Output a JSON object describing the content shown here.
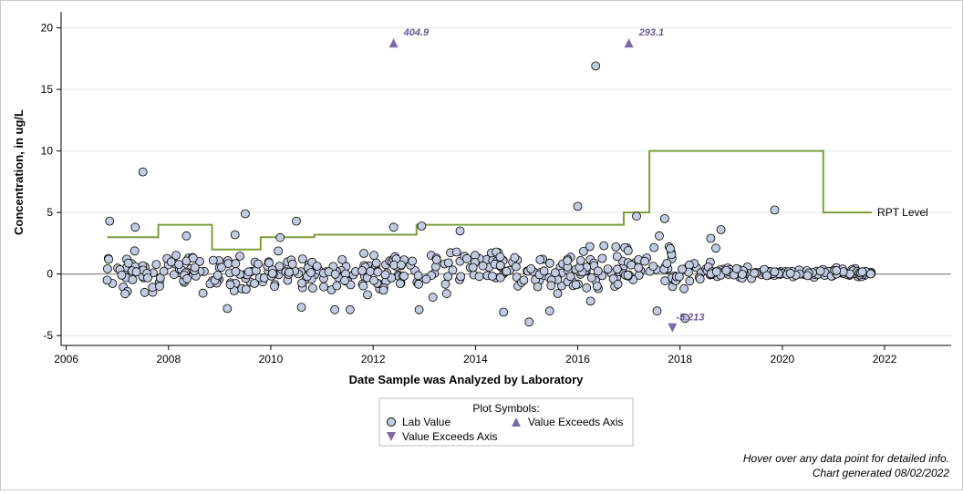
{
  "chart_data": {
    "type": "scatter",
    "xlabel": "Date Sample was Analyzed by Laboratory",
    "ylabel": "Concentration, in ug/L",
    "xlim": [
      2005.9,
      2023.3
    ],
    "ylim": [
      -5.8,
      21.3
    ],
    "x_ticks": [
      2006,
      2008,
      2010,
      2012,
      2014,
      2016,
      2018,
      2020,
      2022
    ],
    "y_ticks": [
      -5,
      0,
      5,
      10,
      15,
      20
    ],
    "grid": "horizontal",
    "reference_line_y": 0,
    "rpt_level": {
      "name": "RPT Level",
      "steps": [
        [
          2006.8,
          3
        ],
        [
          2007.8,
          3
        ],
        [
          2007.8,
          4
        ],
        [
          2008.85,
          4
        ],
        [
          2008.85,
          2
        ],
        [
          2009.8,
          2
        ],
        [
          2009.8,
          3
        ],
        [
          2010.85,
          3
        ],
        [
          2010.85,
          3.2
        ],
        [
          2012.85,
          3.2
        ],
        [
          2012.85,
          4
        ],
        [
          2016.9,
          4
        ],
        [
          2016.9,
          5
        ],
        [
          2017.4,
          5
        ],
        [
          2017.4,
          10
        ],
        [
          2020.8,
          10
        ],
        [
          2020.8,
          5
        ],
        [
          2021.75,
          5
        ]
      ]
    },
    "outliers": [
      {
        "x": 2007.5,
        "y": 8.3
      },
      {
        "x": 2009.5,
        "y": 4.9
      },
      {
        "x": 2010.5,
        "y": 4.3
      },
      {
        "x": 2006.85,
        "y": 4.3
      },
      {
        "x": 2007.35,
        "y": 3.8
      },
      {
        "x": 2012.4,
        "y": 3.8
      },
      {
        "x": 2012.95,
        "y": 3.9
      },
      {
        "x": 2013.7,
        "y": 3.5
      },
      {
        "x": 2016.0,
        "y": 5.5
      },
      {
        "x": 2016.35,
        "y": 16.9
      },
      {
        "x": 2017.7,
        "y": 4.5
      },
      {
        "x": 2017.15,
        "y": 4.7
      },
      {
        "x": 2018.8,
        "y": 3.6
      },
      {
        "x": 2019.85,
        "y": 5.2
      },
      {
        "x": 2009.3,
        "y": 3.2
      },
      {
        "x": 2008.35,
        "y": 3.1
      },
      {
        "x": 2018.6,
        "y": 2.9
      },
      {
        "x": 2018.7,
        "y": 2.1
      },
      {
        "x": 2007.15,
        "y": -1.6
      },
      {
        "x": 2009.15,
        "y": -2.8
      },
      {
        "x": 2010.6,
        "y": -2.7
      },
      {
        "x": 2011.25,
        "y": -2.9
      },
      {
        "x": 2011.55,
        "y": -2.9
      },
      {
        "x": 2012.9,
        "y": -2.9
      },
      {
        "x": 2014.55,
        "y": -3.1
      },
      {
        "x": 2015.05,
        "y": -3.9
      },
      {
        "x": 2015.45,
        "y": -3.0
      },
      {
        "x": 2017.55,
        "y": -3.0
      },
      {
        "x": 2018.1,
        "y": -3.6
      },
      {
        "x": 2016.25,
        "y": -2.2
      }
    ],
    "exceeds_above": [
      {
        "x": 2012.4,
        "label": "404.9"
      },
      {
        "x": 2017.0,
        "label": "293.1"
      }
    ],
    "exceeds_below": [
      {
        "x": 2017.85,
        "label": "-5.213"
      }
    ],
    "legend": {
      "title": "Plot Symbols:",
      "lab_value": "Lab Value",
      "exceeds_up": "Value Exceeds Axis",
      "exceeds_down": "Value Exceeds Axis"
    },
    "colors": {
      "marker_fill": "#c3cbe0",
      "marker_stroke": "#000000",
      "triangle": "#7b6aa8",
      "rpt_line": "#7f9e3c",
      "grid": "#e4e4e4",
      "zero_line": "#808080"
    }
  },
  "notes": {
    "hover": "Hover over any data point for detailed info.",
    "generated": "Chart generated 08/02/2022"
  }
}
